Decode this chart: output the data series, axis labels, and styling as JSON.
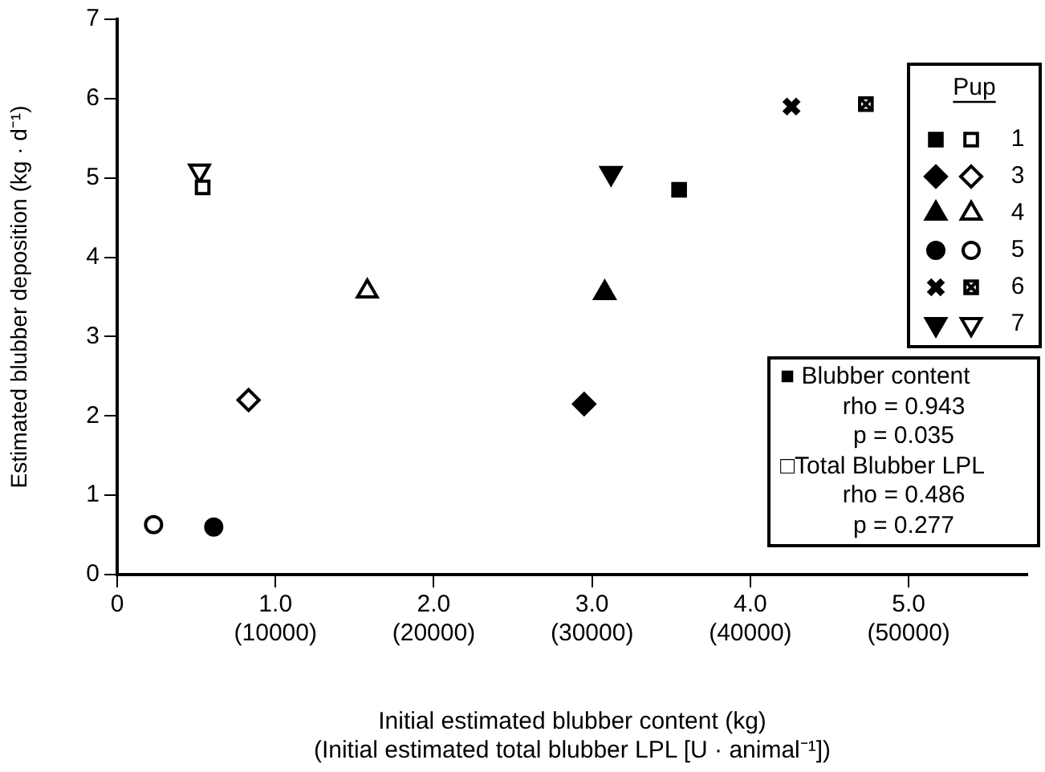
{
  "chart_data": {
    "type": "scatter",
    "xlabel": "Initial estimated blubber content (kg)",
    "x2label": "(Initial estimated total blubber LPL [U · animal⁻¹])",
    "ylabel": "Estimated blubber deposition (kg · d⁻¹)",
    "xlim": [
      0,
      5.75
    ],
    "xticks": [
      0,
      {
        "value": 1,
        "label": "1.0"
      },
      {
        "value": 2,
        "label": "2.0"
      },
      {
        "value": 3,
        "label": "3.0"
      },
      {
        "value": 4,
        "label": "4.0"
      },
      {
        "value": 5,
        "label": "5.0"
      }
    ],
    "x2lim": [
      0,
      57500
    ],
    "x2ticks": [
      {
        "value": 10000,
        "label": "(10000)"
      },
      {
        "value": 20000,
        "label": "(20000)"
      },
      {
        "value": 30000,
        "label": "(30000)"
      },
      {
        "value": 40000,
        "label": "(40000)"
      },
      {
        "value": 50000,
        "label": "(50000)"
      }
    ],
    "ylim": [
      0,
      7
    ],
    "yticks": [
      0,
      1,
      2,
      3,
      4,
      5,
      6,
      7
    ],
    "grid": false,
    "legend": "top right",
    "legend_title": "Pup",
    "series": [
      {
        "marker": "square",
        "color": "#000000",
        "x": [
          3.55
        ],
        "values": [
          4.85
        ]
      },
      {
        "name": "1",
        "marker": "square",
        "color": "#ffffff",
        "x": [
          0.54
        ],
        "values": [
          4.88
        ]
      },
      {
        "marker": "diamond",
        "color": "#000000",
        "x": [
          2.95
        ],
        "values": [
          2.15
        ]
      },
      {
        "name": "3",
        "marker": "diamond",
        "color": "#ffffff",
        "x": [
          0.83
        ],
        "values": [
          2.2
        ]
      },
      {
        "marker": "triangle",
        "color": "#000000",
        "x": [
          3.08
        ],
        "values": [
          3.55
        ]
      },
      {
        "name": "4",
        "marker": "triangle",
        "color": "#ffffff",
        "x": [
          1.58
        ],
        "values": [
          3.57
        ]
      },
      {
        "marker": "circle",
        "color": "#000000",
        "x": [
          0.61
        ],
        "values": [
          0.6
        ]
      },
      {
        "name": "5",
        "marker": "circle",
        "color": "#ffffff",
        "x": [
          0.23
        ],
        "values": [
          0.63
        ]
      },
      {
        "marker": "cross",
        "color": "#000000",
        "x": [
          4.26
        ],
        "values": [
          5.9
        ]
      },
      {
        "name": "6",
        "marker": "square-cross",
        "color": "#ffffff",
        "x": [
          4.73
        ],
        "values": [
          5.93
        ]
      },
      {
        "marker": "triangle-down",
        "color": "#000000",
        "x": [
          3.12
        ],
        "values": [
          5.06
        ]
      },
      {
        "name": "7",
        "marker": "triangle-down",
        "color": "#ffffff",
        "x": [
          0.52
        ],
        "values": [
          5.09
        ]
      }
    ],
    "annotations": [
      "■ Blubber content",
      "rho = 0.943",
      "p = 0.035",
      "□Total Blubber LPL",
      "rho = 0.486",
      "p = 0.277"
    ]
  }
}
